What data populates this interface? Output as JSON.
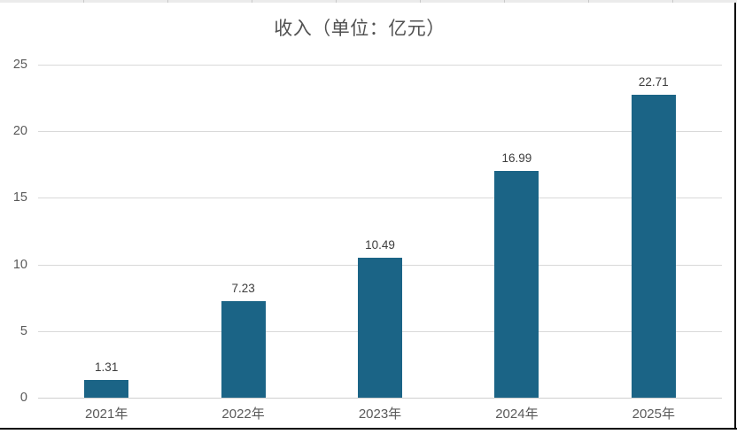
{
  "chart_data": {
    "type": "bar",
    "title": "收入（单位：亿元）",
    "categories": [
      "2021年",
      "2022年",
      "2023年",
      "2024年",
      "2025年"
    ],
    "values": [
      1.31,
      7.23,
      10.49,
      16.99,
      22.71
    ],
    "value_labels": [
      "1.31",
      "7.23",
      "10.49",
      "16.99",
      "22.71"
    ],
    "xlabel": "",
    "ylabel": "",
    "ylim": [
      0,
      25
    ],
    "yticks": [
      0,
      5,
      10,
      15,
      20,
      25
    ],
    "grid": "horizontal",
    "legend": "none",
    "colors": {
      "bar": "#1b6486",
      "value_label": "#3d3d3d",
      "axis_tick": "#595959",
      "gridline": "#d9d9d9",
      "title": "#515151",
      "chart_border": "#000000"
    }
  }
}
